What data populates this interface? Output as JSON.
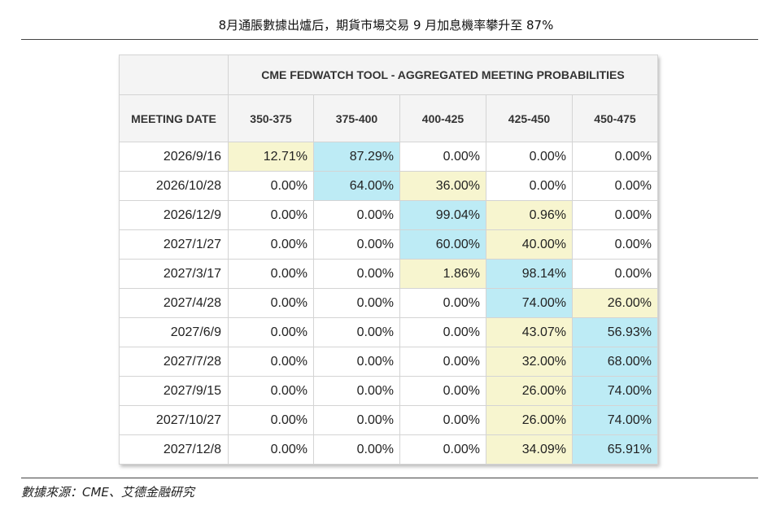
{
  "title": "8月通脹數據出爐后，期貨市場交易 9 月加息機率攀升至 87%",
  "source": "數據來源：CME、艾德金融研究",
  "chart_data": {
    "type": "table",
    "table_title": "CME FEDWATCH TOOL - AGGREGATED MEETING PROBABILITIES",
    "row_header": "MEETING DATE",
    "columns": [
      "350-375",
      "375-400",
      "400-425",
      "425-450",
      "450-475"
    ],
    "rows": [
      {
        "date": "2026/9/16",
        "values": [
          "12.71%",
          "87.29%",
          "0.00%",
          "0.00%",
          "0.00%"
        ],
        "shade": [
          "lo",
          "hi",
          "no",
          "no",
          "no"
        ]
      },
      {
        "date": "2026/10/28",
        "values": [
          "0.00%",
          "64.00%",
          "36.00%",
          "0.00%",
          "0.00%"
        ],
        "shade": [
          "no",
          "hi",
          "lo",
          "no",
          "no"
        ]
      },
      {
        "date": "2026/12/9",
        "values": [
          "0.00%",
          "0.00%",
          "99.04%",
          "0.96%",
          "0.00%"
        ],
        "shade": [
          "no",
          "no",
          "hi",
          "lo",
          "no"
        ]
      },
      {
        "date": "2027/1/27",
        "values": [
          "0.00%",
          "0.00%",
          "60.00%",
          "40.00%",
          "0.00%"
        ],
        "shade": [
          "no",
          "no",
          "hi",
          "lo",
          "no"
        ]
      },
      {
        "date": "2027/3/17",
        "values": [
          "0.00%",
          "0.00%",
          "1.86%",
          "98.14%",
          "0.00%"
        ],
        "shade": [
          "no",
          "no",
          "lo",
          "hi",
          "no"
        ]
      },
      {
        "date": "2027/4/28",
        "values": [
          "0.00%",
          "0.00%",
          "0.00%",
          "74.00%",
          "26.00%"
        ],
        "shade": [
          "no",
          "no",
          "no",
          "hi",
          "lo"
        ]
      },
      {
        "date": "2027/6/9",
        "values": [
          "0.00%",
          "0.00%",
          "0.00%",
          "43.07%",
          "56.93%"
        ],
        "shade": [
          "no",
          "no",
          "no",
          "lo",
          "hi"
        ]
      },
      {
        "date": "2027/7/28",
        "values": [
          "0.00%",
          "0.00%",
          "0.00%",
          "32.00%",
          "68.00%"
        ],
        "shade": [
          "no",
          "no",
          "no",
          "lo",
          "hi"
        ]
      },
      {
        "date": "2027/9/15",
        "values": [
          "0.00%",
          "0.00%",
          "0.00%",
          "26.00%",
          "74.00%"
        ],
        "shade": [
          "no",
          "no",
          "no",
          "lo",
          "hi"
        ]
      },
      {
        "date": "2027/10/27",
        "values": [
          "0.00%",
          "0.00%",
          "0.00%",
          "26.00%",
          "74.00%"
        ],
        "shade": [
          "no",
          "no",
          "no",
          "lo",
          "hi"
        ]
      },
      {
        "date": "2027/12/8",
        "values": [
          "0.00%",
          "0.00%",
          "0.00%",
          "34.09%",
          "65.91%"
        ],
        "shade": [
          "no",
          "no",
          "no",
          "lo",
          "hi"
        ]
      }
    ]
  },
  "colors": {
    "highest": "#bdebf5",
    "second": "#f7f5cf"
  }
}
